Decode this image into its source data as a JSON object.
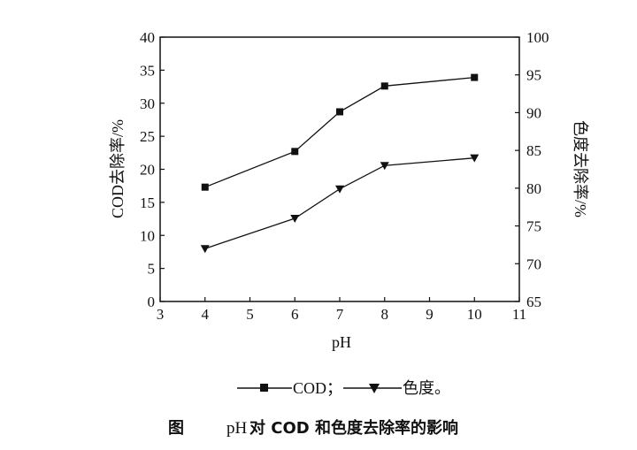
{
  "chart_data": {
    "type": "line",
    "x": [
      4,
      6,
      7,
      8,
      10
    ],
    "xlabel": "pH",
    "xlim": [
      3,
      11
    ],
    "xticks": [
      3,
      4,
      5,
      6,
      7,
      8,
      9,
      10,
      11
    ],
    "y_left": {
      "label": "COD去除率/%",
      "lim": [
        0,
        40
      ],
      "ticks": [
        0,
        5,
        10,
        15,
        20,
        25,
        30,
        35,
        40
      ]
    },
    "y_right": {
      "label": "色度去除率/%",
      "lim": [
        65,
        100
      ],
      "ticks": [
        65,
        70,
        75,
        80,
        85,
        90,
        95,
        100
      ]
    },
    "series": [
      {
        "name": "COD",
        "axis": "left",
        "marker": "square",
        "values": [
          17.3,
          22.7,
          28.7,
          32.6,
          33.9
        ]
      },
      {
        "name": "色度",
        "axis": "right",
        "marker": "triangle-down",
        "values": [
          72.0,
          76.0,
          79.9,
          83.0,
          84.0
        ]
      }
    ],
    "legend": {
      "position": "bottom",
      "separator": "；",
      "terminator": "。"
    },
    "grid": false
  },
  "caption": {
    "label": "图",
    "text_prefix": "pH",
    "text_main": " 对 COD 和色度去除率的影响"
  }
}
